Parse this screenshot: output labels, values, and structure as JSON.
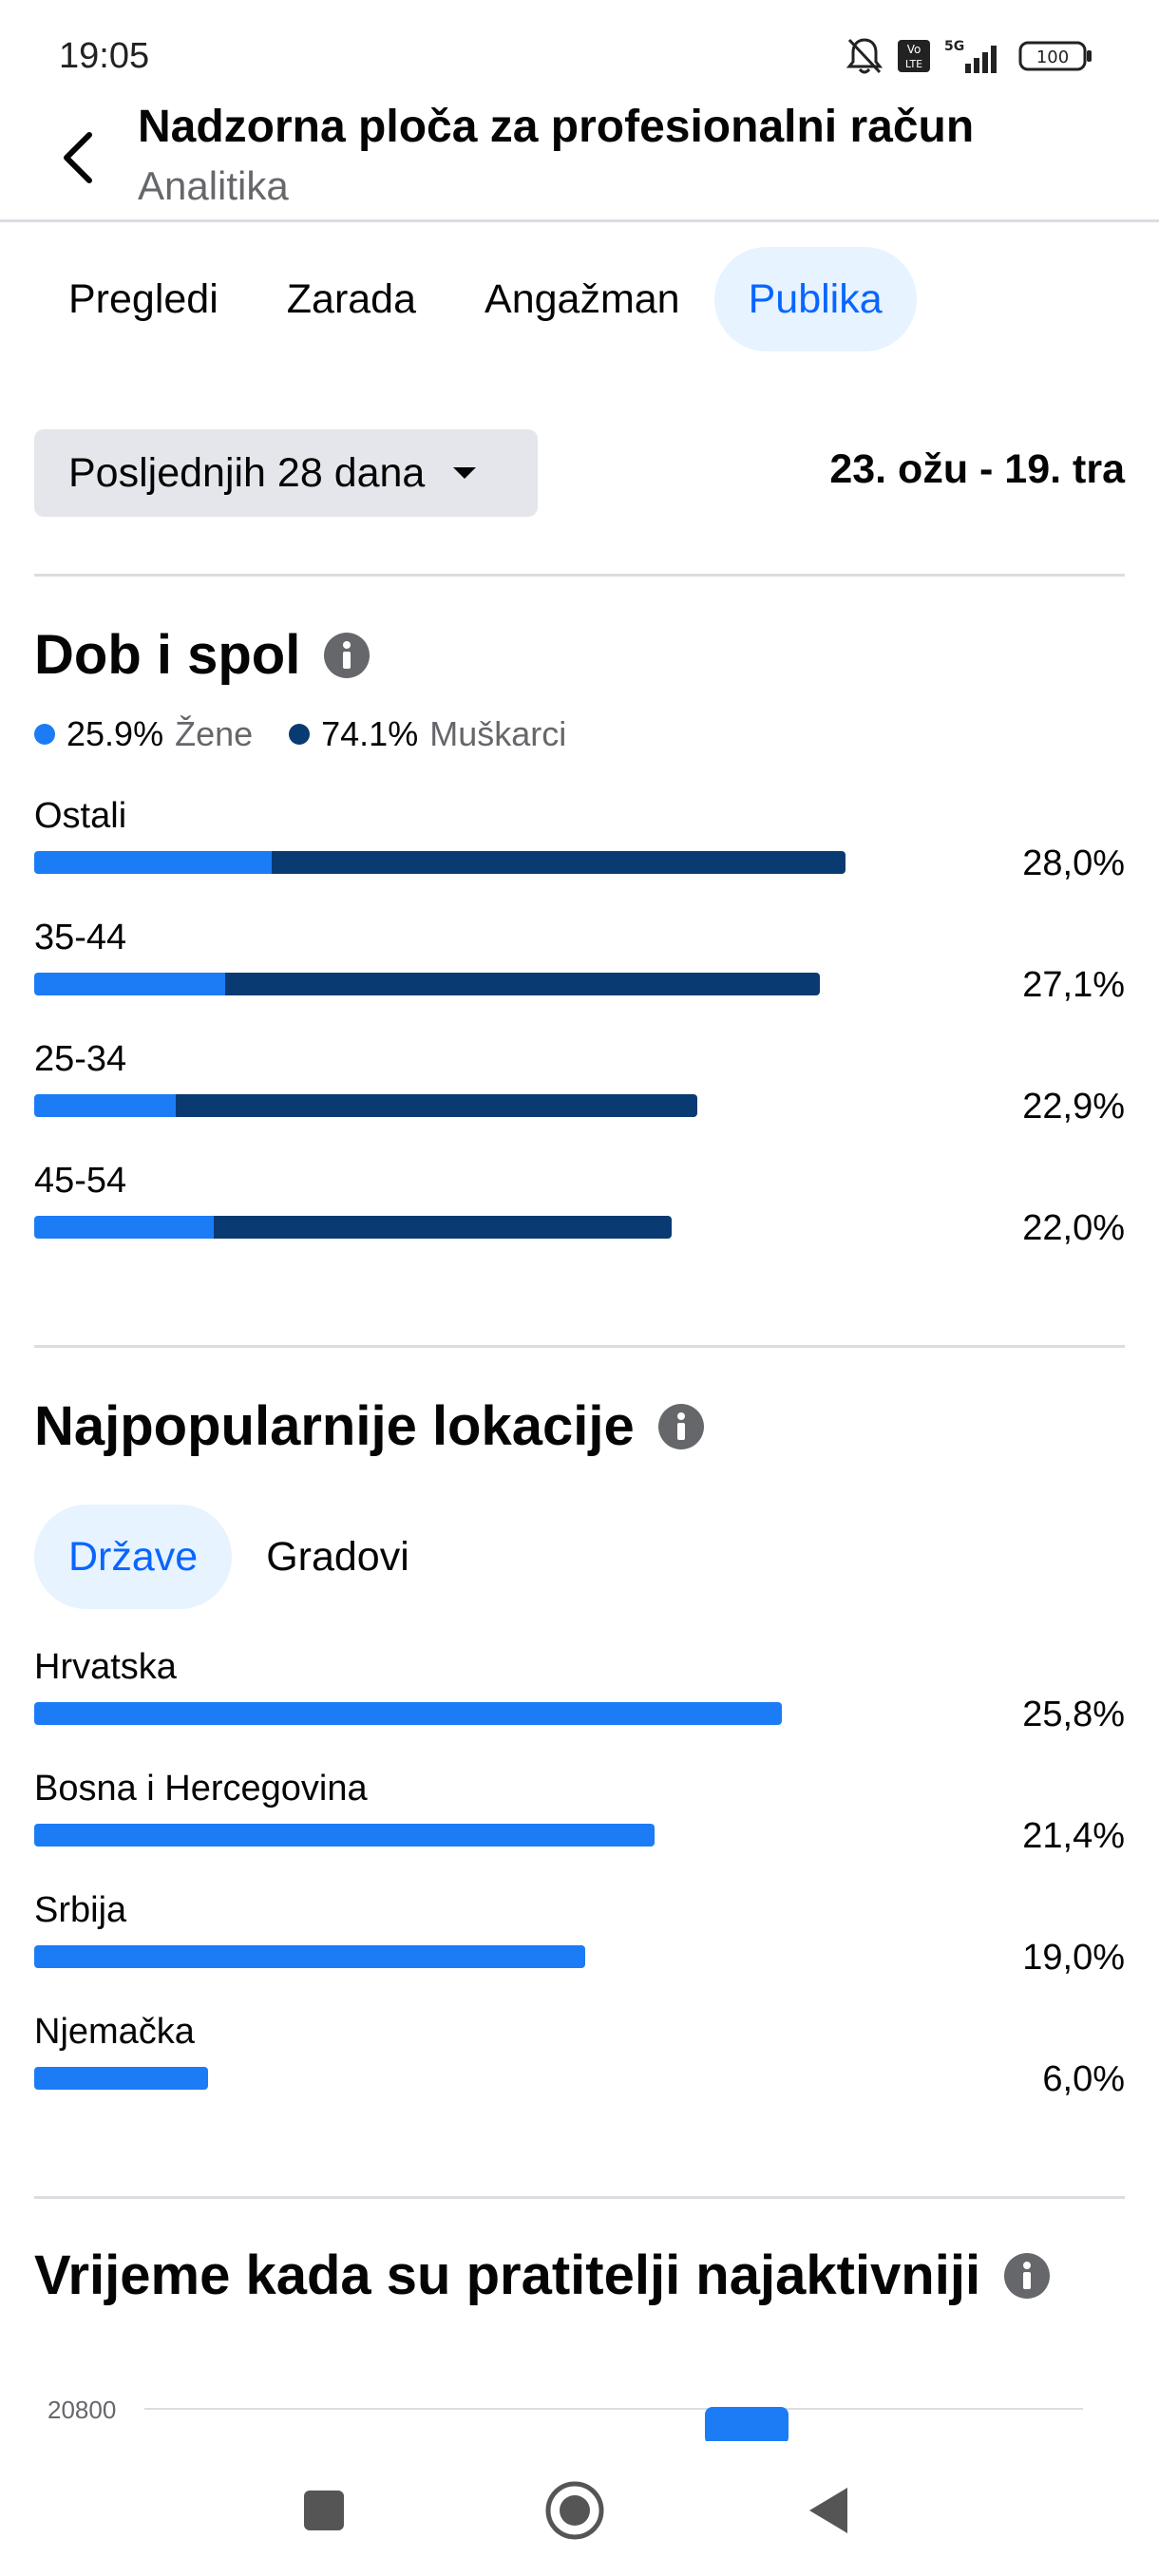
{
  "status_bar": {
    "time": "19:05",
    "battery": "100",
    "network": "5G",
    "volte": "Vo LTE"
  },
  "header": {
    "title": "Nadzorna ploča za profesionalni račun",
    "subtitle": "Analitika"
  },
  "tabs": [
    {
      "label": "Pregledi",
      "active": false
    },
    {
      "label": "Zarada",
      "active": false
    },
    {
      "label": "Angažman",
      "active": false
    },
    {
      "label": "Publika",
      "active": true
    }
  ],
  "filter": {
    "range_label": "Posljednjih 28 dana",
    "date_range": "23. ožu - 19. tra"
  },
  "age_gender": {
    "title": "Dob i spol",
    "legend": [
      {
        "pct": "25.9%",
        "label": "Žene",
        "color": "#1b7cf5"
      },
      {
        "pct": "74.1%",
        "label": "Muškarci",
        "color": "#0a3a72"
      }
    ],
    "rows": [
      {
        "label": "Ostali",
        "value": "28,0%",
        "total": 28.0,
        "female": 8.2,
        "male": 19.8
      },
      {
        "label": "35-44",
        "value": "27,1%",
        "total": 27.1,
        "female": 6.6,
        "male": 20.5
      },
      {
        "label": "25-34",
        "value": "22,9%",
        "total": 22.9,
        "female": 4.9,
        "male": 18.0
      },
      {
        "label": "45-54",
        "value": "22,0%",
        "total": 22.0,
        "female": 6.2,
        "male": 15.8
      }
    ]
  },
  "locations": {
    "title": "Najpopularnije lokacije",
    "subtabs": [
      {
        "label": "Države",
        "active": true
      },
      {
        "label": "Gradovi",
        "active": false
      }
    ],
    "rows": [
      {
        "label": "Hrvatska",
        "value": "25,8%",
        "total": 25.8
      },
      {
        "label": "Bosna i Hercegovina",
        "value": "21,4%",
        "total": 21.4
      },
      {
        "label": "Srbija",
        "value": "19,0%",
        "total": 19.0
      },
      {
        "label": "Njemačka",
        "value": "6,0%",
        "total": 6.0
      }
    ]
  },
  "active_times": {
    "title": "Vrijeme kada su pratitelji najaktivniji",
    "y_tick": "20800"
  },
  "colors": {
    "accent": "#0866ff",
    "female_bar": "#1b7cf5",
    "male_bar": "#0a3a72",
    "divider": "#dadde1"
  },
  "nav_icons": [
    "recents-square-icon",
    "home-circle-icon",
    "back-triangle-icon"
  ]
}
